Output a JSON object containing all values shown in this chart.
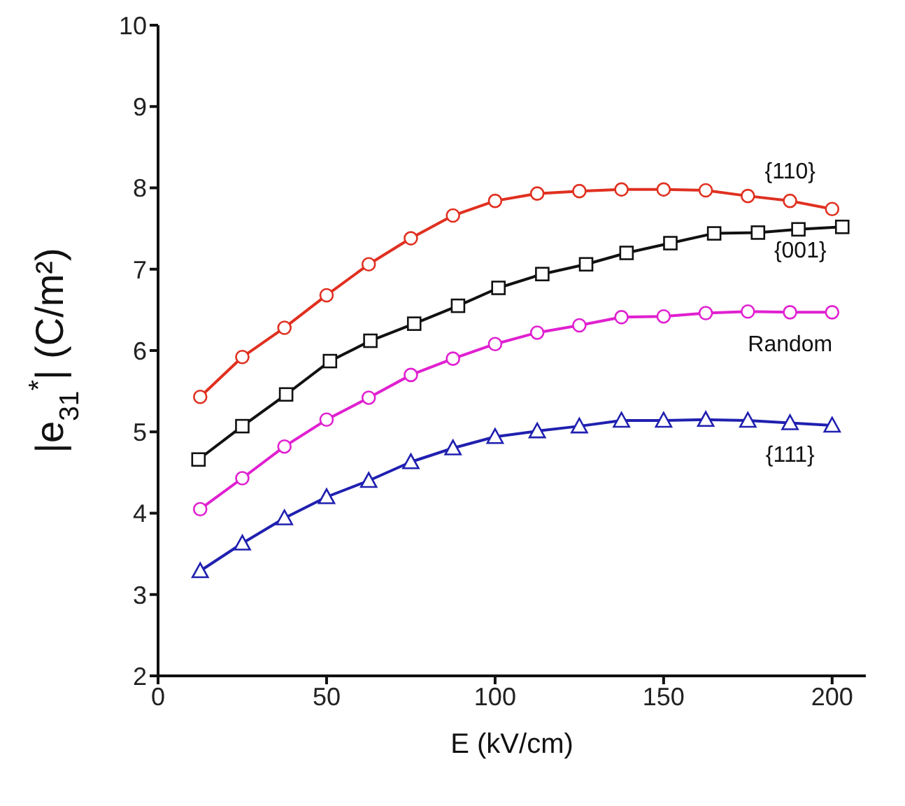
{
  "chart_data": {
    "type": "line",
    "xlabel": "E (kV/cm)",
    "ylabel": "|e$_{31}$$^{*}$| (C/m²)",
    "xlim": [
      0,
      210
    ],
    "xticks": [
      0,
      50,
      100,
      150,
      200
    ],
    "ylim": [
      2,
      10
    ],
    "yticks": [
      2,
      3,
      4,
      5,
      6,
      7,
      8,
      9,
      10
    ],
    "line_style": "solid",
    "x": [
      12.5,
      25,
      37.5,
      50,
      62.5,
      75,
      87.5,
      100,
      112.5,
      125,
      137.5,
      150,
      162.5,
      175,
      187.5,
      200
    ],
    "series": [
      {
        "name": "{110}",
        "color": "#e03020",
        "marker": "circle",
        "values": [
          5.43,
          5.92,
          6.28,
          6.68,
          7.06,
          7.38,
          7.66,
          7.84,
          7.93,
          7.96,
          7.98,
          7.98,
          7.97,
          7.9,
          7.84,
          7.74
        ]
      },
      {
        "name": "{001}",
        "color": "#111111",
        "marker": "square",
        "x": [
          12,
          25,
          38,
          51,
          63,
          76,
          89,
          101,
          114,
          127,
          139,
          152,
          165,
          178,
          190,
          203
        ],
        "values": [
          4.66,
          5.07,
          5.46,
          5.87,
          6.12,
          6.33,
          6.55,
          6.77,
          6.94,
          7.06,
          7.2,
          7.32,
          7.44,
          7.45,
          7.49,
          7.52
        ]
      },
      {
        "name": "Random",
        "color": "#e020d0",
        "marker": "circle",
        "values": [
          4.05,
          4.43,
          4.82,
          5.15,
          5.42,
          5.7,
          5.9,
          6.08,
          6.22,
          6.31,
          6.41,
          6.42,
          6.46,
          6.48,
          6.47,
          6.47
        ]
      },
      {
        "name": "{111}",
        "color": "#2020b0",
        "marker": "triangle",
        "values": [
          3.29,
          3.63,
          3.94,
          4.2,
          4.4,
          4.63,
          4.8,
          4.94,
          5.01,
          5.07,
          5.14,
          5.14,
          5.15,
          5.14,
          5.11,
          5.08
        ]
      }
    ]
  }
}
